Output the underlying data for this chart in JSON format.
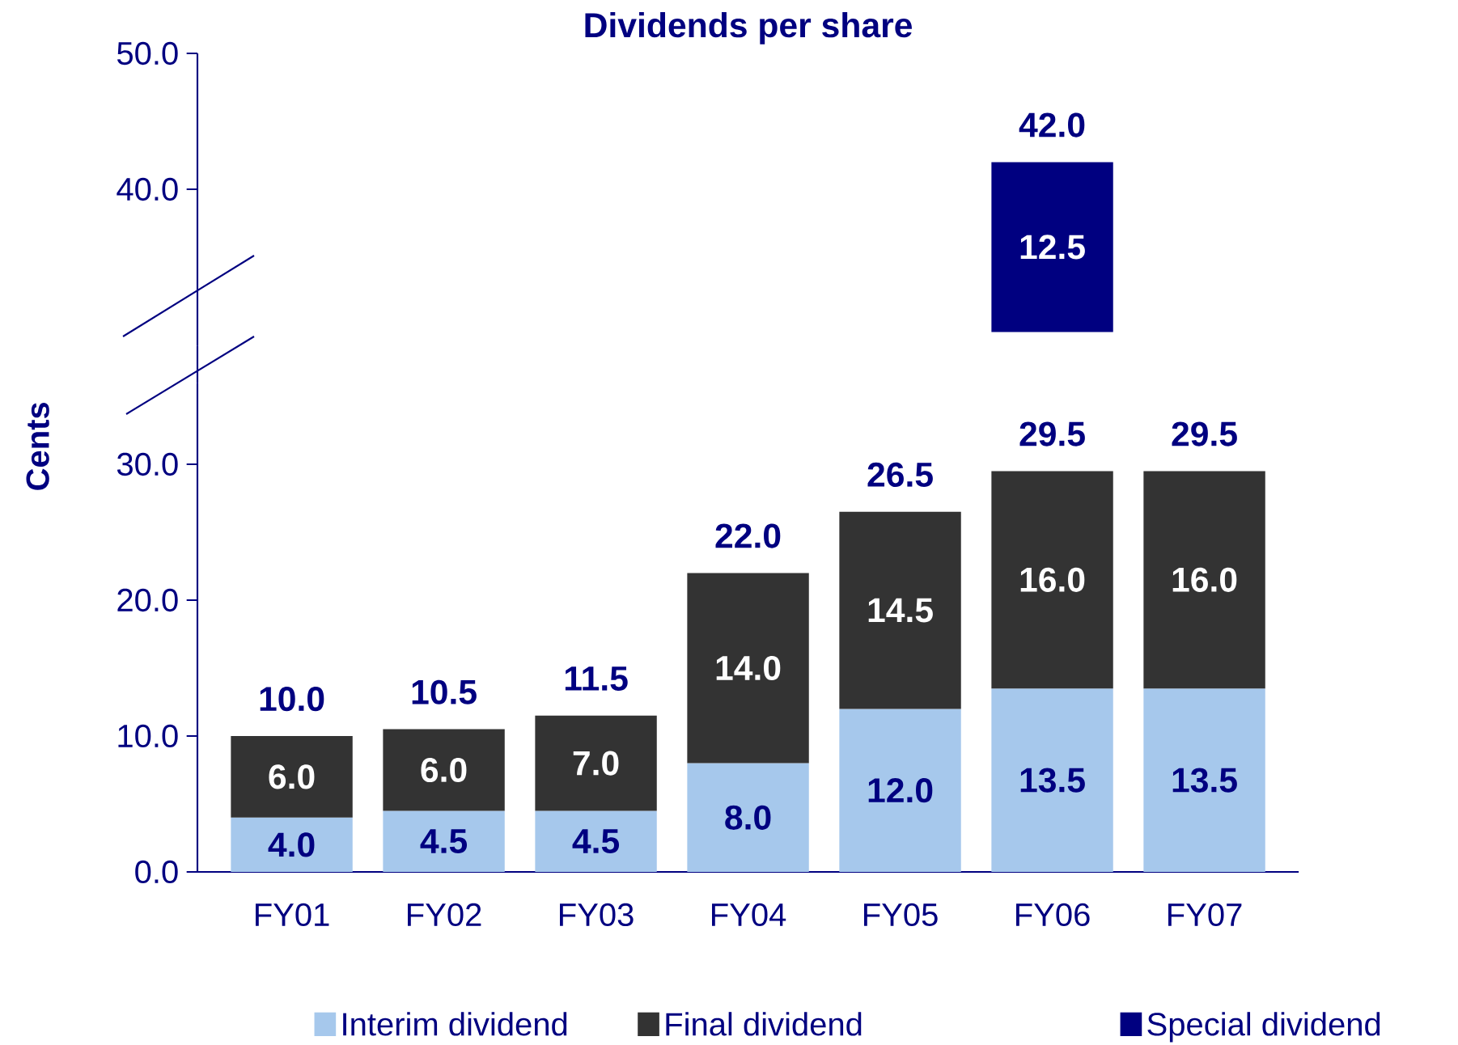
{
  "chart_data": [
    {
      "type": "bar",
      "title": "Dividends per share",
      "categories": [
        "FY01",
        "FY02",
        "FY03",
        "FY04",
        "FY05",
        "FY06",
        "FY07"
      ],
      "ylim": [
        28.5,
        50
      ],
      "yticks": [
        {
          "value": 40,
          "label": "40.0"
        },
        {
          "value": 50,
          "label": "50.0"
        }
      ],
      "tick_labels": "y",
      "legend": "bottom",
      "series": [
        {
          "name": "Special dividend",
          "color": "#000080",
          "values": [
            null,
            null,
            null,
            null,
            null,
            12.5,
            null
          ],
          "base": [
            null,
            null,
            null,
            null,
            null,
            29.5,
            null
          ],
          "value_labels": [
            null,
            null,
            null,
            null,
            null,
            "12.5",
            null
          ]
        }
      ],
      "annotations": [
        {
          "text": "42.0",
          "x": "FY06",
          "y": 42
        }
      ]
    },
    {
      "type": "bar",
      "ylabel": "Cents",
      "categories": [
        "FY01",
        "FY02",
        "FY03",
        "FY04",
        "FY05",
        "FY06",
        "FY07"
      ],
      "ylim": [
        0,
        36
      ],
      "yticks": [
        {
          "value": 0,
          "label": "0.0"
        },
        {
          "value": 10,
          "label": "10.0"
        },
        {
          "value": 20,
          "label": "20.0"
        },
        {
          "value": 30,
          "label": "30.0"
        }
      ],
      "stacked": true,
      "legend": "bottom",
      "series": [
        {
          "name": "Interim dividend",
          "color": "#a6c8ec",
          "values": [
            4.0,
            4.5,
            4.5,
            8.0,
            12.0,
            13.5,
            13.5
          ],
          "value_labels": [
            "4.0",
            "4.5",
            "4.5",
            "8.0",
            "12.0",
            "13.5",
            "13.5"
          ]
        },
        {
          "name": "Final dividend",
          "color": "#333333",
          "values": [
            6.0,
            6.0,
            7.0,
            14.0,
            14.5,
            16.0,
            16.0
          ],
          "value_labels": [
            "6.0",
            "6.0",
            "7.0",
            "14.0",
            "14.5",
            "16.0",
            "16.0"
          ]
        }
      ],
      "totals": [
        "10.0",
        "10.5",
        "11.5",
        "22.0",
        "26.5",
        "29.5",
        "29.5"
      ]
    }
  ]
}
